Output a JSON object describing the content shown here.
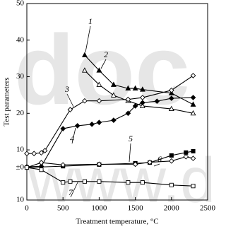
{
  "chart_data": {
    "type": "line",
    "watermark": [
      "doc",
      "www.d"
    ],
    "x_label": "Treatment temperature, °C",
    "y_label": "Test parameters",
    "xlim": [
      0,
      2500
    ],
    "xticks": [
      0,
      500,
      1000,
      1500,
      2000,
      2500
    ],
    "ylim": [
      -3.7,
      50
    ],
    "yticks": [
      10,
      20,
      30,
      40,
      50
    ],
    "y2lim": [
      -10,
      50.4
    ],
    "y2ticks": [
      {
        "value": 0,
        "label": "±0"
      },
      {
        "value": -10,
        "label": "10"
      }
    ],
    "series": [
      {
        "name": "1",
        "color": "#000000",
        "marker": "triangle-filled",
        "x": [
          800,
          1000,
          1200,
          1400,
          1500,
          1600,
          2000,
          2300
        ],
        "values": [
          35.9,
          31.7,
          27.8,
          26.8,
          26.8,
          26.5,
          25.5,
          22.4
        ]
      },
      {
        "name": "2",
        "color": "#000000",
        "marker": "triangle-open",
        "x": [
          800,
          1000,
          1200,
          1400,
          1600,
          2000,
          2300
        ],
        "values": [
          31.7,
          27.8,
          24.9,
          23.4,
          22,
          21.2,
          20
        ]
      },
      {
        "name": "3",
        "color": "#000000",
        "marker": "diamond-open",
        "x": [
          0,
          100,
          200,
          250,
          600,
          800,
          1000,
          1400,
          1600,
          2000,
          2300
        ],
        "values": [
          9,
          9,
          9.2,
          9.8,
          21,
          23.4,
          23.4,
          23.8,
          24.3,
          26.3,
          30.3
        ]
      },
      {
        "name": "4",
        "color": "#000000",
        "marker": "diamond-filled",
        "x": [
          0,
          200,
          500,
          700,
          900,
          1000,
          1200,
          1400,
          1500,
          1600,
          1800,
          2000,
          2300
        ],
        "values": [
          5.4,
          5.5,
          15.8,
          16.6,
          17,
          17.5,
          18.1,
          20,
          22,
          22.9,
          23.3,
          24.1,
          24.3
        ]
      },
      {
        "name": "5",
        "color": "#000000",
        "marker": "square-filled",
        "axis": "y2",
        "x": [
          0,
          500,
          1000,
          1500,
          1700,
          2000,
          2200,
          2300
        ],
        "values": [
          0,
          0.4,
          0.9,
          1.3,
          1.5,
          3.7,
          4.6,
          5
        ]
      },
      {
        "name": "6",
        "color": "#000000",
        "marker": "diamond-open",
        "axis": "y2",
        "x": [
          0,
          200,
          500,
          1000,
          1500,
          1700,
          2000,
          2200,
          2300
        ],
        "values": [
          0,
          1.5,
          0.8,
          1,
          1,
          1.6,
          2,
          3.3,
          2.8
        ]
      },
      {
        "name": "7",
        "color": "#000000",
        "marker": "square-open",
        "axis": "y2",
        "x": [
          0,
          200,
          500,
          600,
          800,
          1000,
          1400,
          1600,
          2000,
          2300
        ],
        "values": [
          0,
          -0.7,
          -4.6,
          -4.3,
          -4.3,
          -4.3,
          -4.6,
          -4.6,
          -5.4,
          -5.7
        ]
      }
    ]
  }
}
